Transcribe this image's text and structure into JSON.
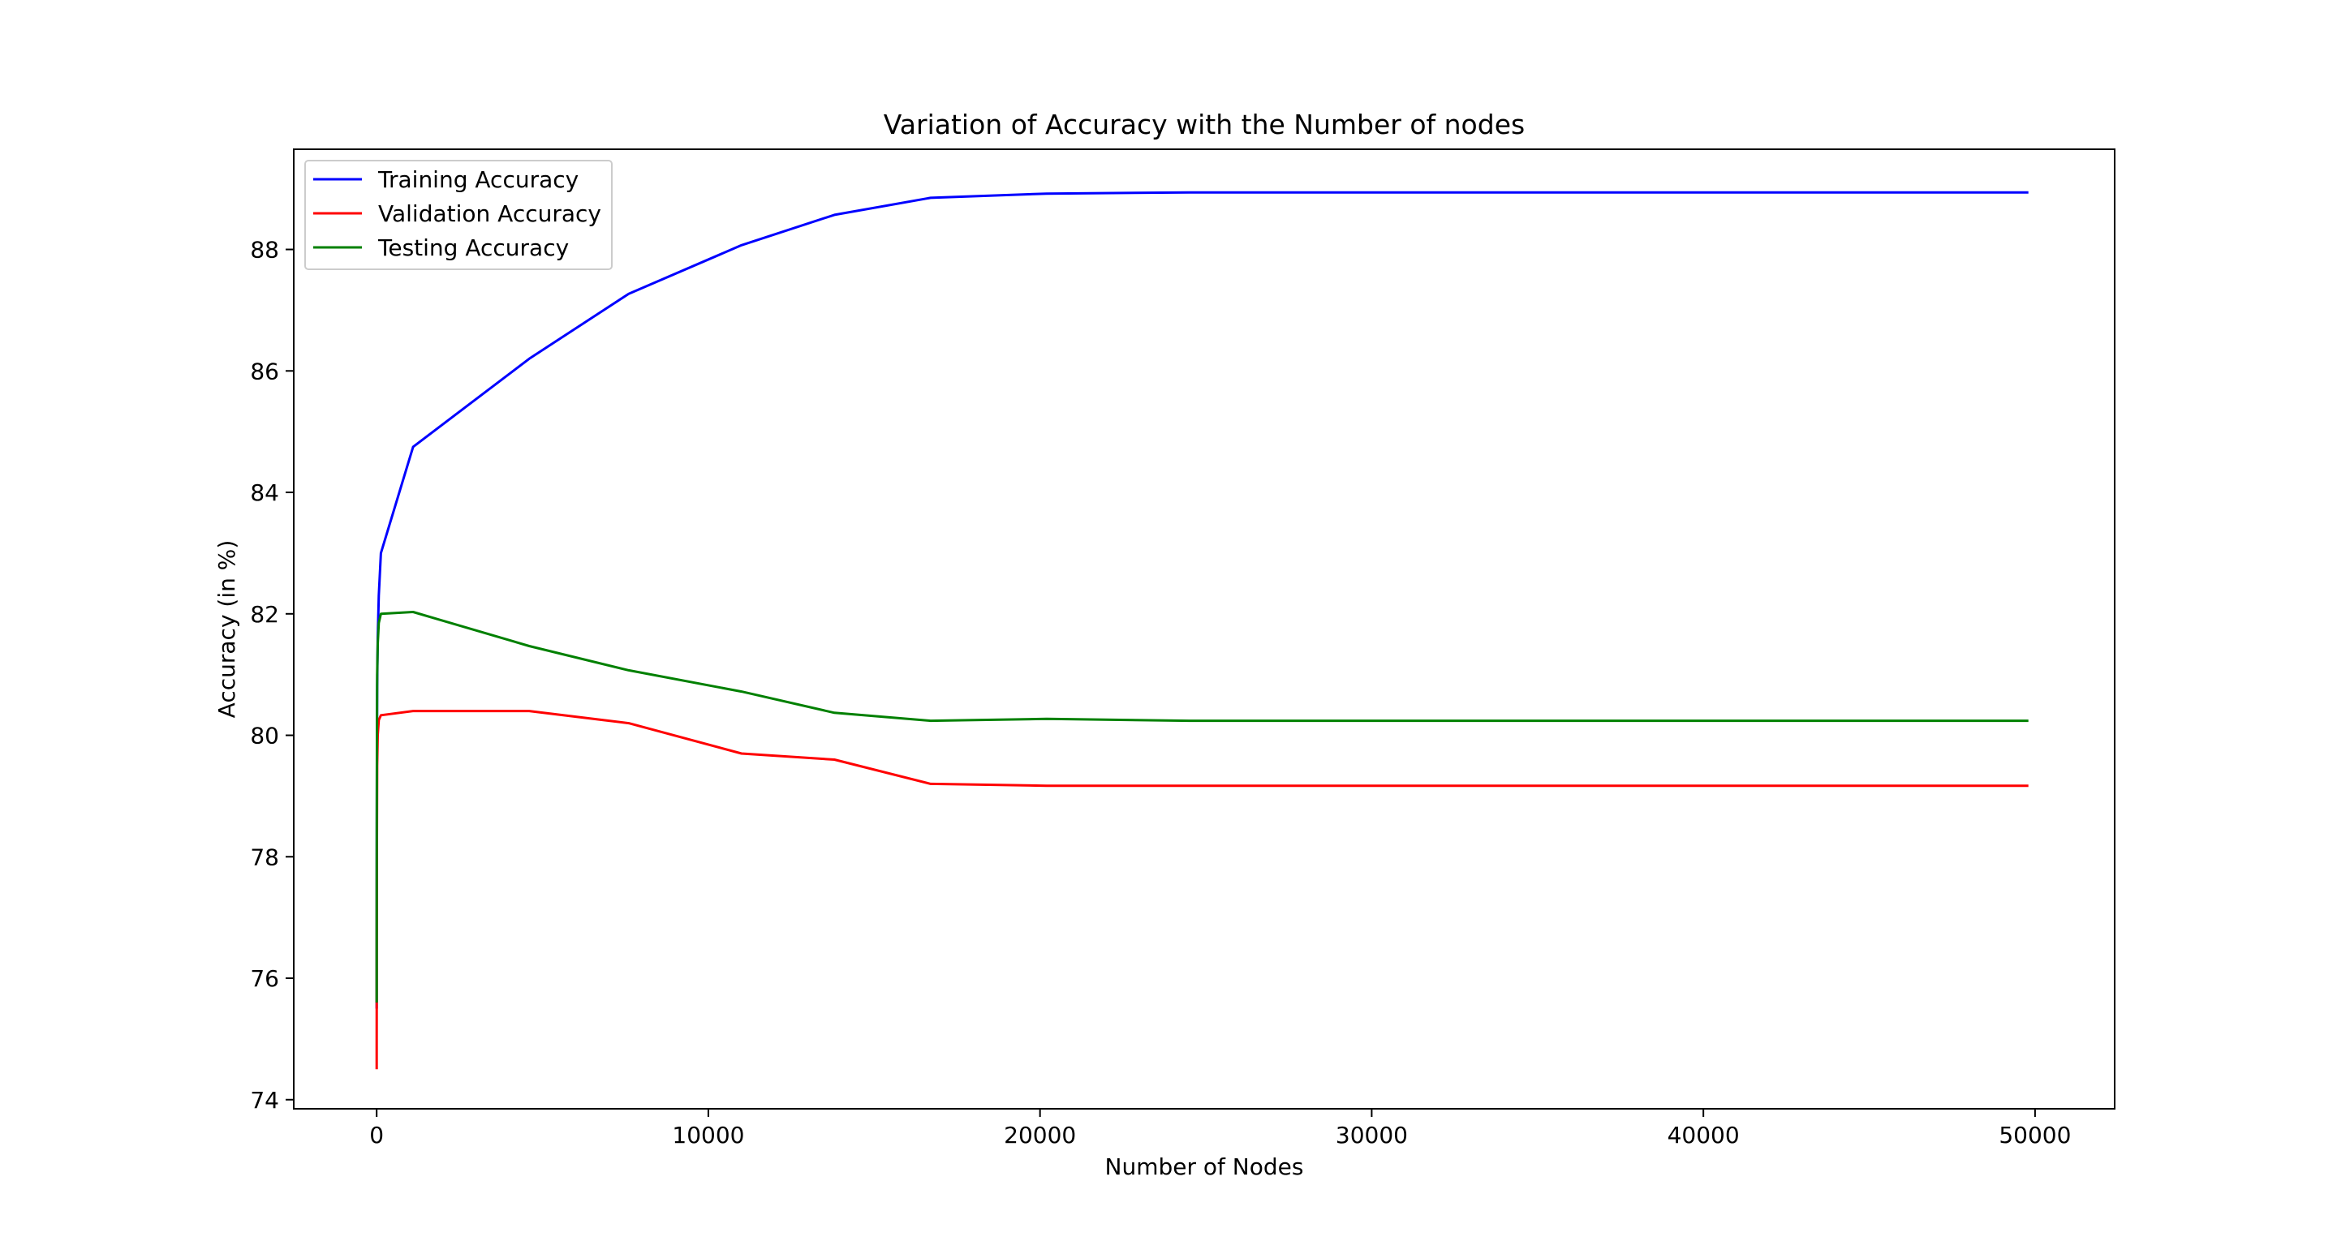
{
  "chart_data": {
    "type": "line",
    "title": "Variation of Accuracy with the Number of nodes",
    "xlabel": "Number of Nodes",
    "ylabel": "Accuracy (in %)",
    "xlim": [
      -2500,
      52400
    ],
    "ylim": [
      73.85,
      89.65
    ],
    "xticks": [
      0,
      10000,
      20000,
      30000,
      40000,
      50000
    ],
    "xtick_labels": [
      "0",
      "10000",
      "20000",
      "30000",
      "40000",
      "50000"
    ],
    "yticks": [
      74,
      76,
      78,
      80,
      82,
      84,
      86,
      88
    ],
    "ytick_labels": [
      "74",
      "76",
      "78",
      "80",
      "82",
      "84",
      "86",
      "88"
    ],
    "grid": false,
    "legend_position": "upper-left",
    "series": [
      {
        "name": "Training Accuracy",
        "color": "#0000ff",
        "x": [
          0,
          1,
          3,
          7,
          15,
          31,
          63,
          127,
          1100,
          4600,
          7600,
          11000,
          13800,
          16700,
          20200,
          24500,
          30000,
          40000,
          49800
        ],
        "y": [
          75.5,
          76.2,
          78.0,
          79.6,
          80.8,
          81.6,
          82.3,
          83.0,
          84.75,
          86.2,
          87.27,
          88.07,
          88.57,
          88.85,
          88.92,
          88.94,
          88.94,
          88.94,
          88.94
        ]
      },
      {
        "name": "Validation Accuracy",
        "color": "#ff0000",
        "x": [
          0,
          1,
          3,
          7,
          15,
          31,
          63,
          127,
          1100,
          4600,
          7600,
          11000,
          13800,
          16700,
          20200,
          24500,
          30000,
          40000,
          49800
        ],
        "y": [
          74.5,
          74.9,
          76.5,
          78.3,
          79.5,
          80.0,
          80.25,
          80.33,
          80.4,
          80.4,
          80.2,
          79.7,
          79.6,
          79.2,
          79.17,
          79.17,
          79.17,
          79.17,
          79.17
        ]
      },
      {
        "name": "Testing Accuracy",
        "color": "#008000",
        "x": [
          0,
          1,
          3,
          7,
          15,
          31,
          63,
          127,
          1100,
          4600,
          7600,
          11000,
          13800,
          16700,
          20200,
          24500,
          30000,
          40000,
          49800
        ],
        "y": [
          75.6,
          76.5,
          78.4,
          79.9,
          81.0,
          81.5,
          81.85,
          82.0,
          82.03,
          81.47,
          81.07,
          80.72,
          80.37,
          80.24,
          80.27,
          80.24,
          80.24,
          80.24,
          80.24
        ]
      }
    ]
  }
}
